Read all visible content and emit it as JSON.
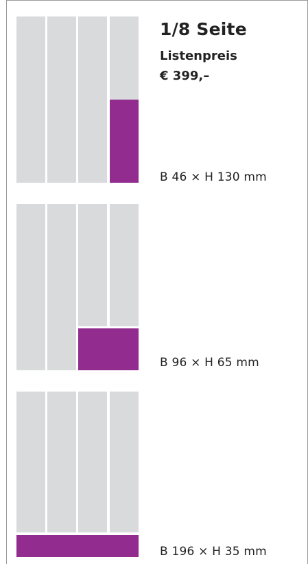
{
  "header": {
    "title": "1/8 Seite",
    "price_label": "Listenpreis",
    "price_value": "€ 399,–"
  },
  "variants": [
    {
      "dimension": "B 46 × H 130 mm"
    },
    {
      "dimension": "B 96 × H 65 mm"
    },
    {
      "dimension": "B 196 × H 35 mm"
    }
  ],
  "colors": {
    "ad_fill": "#922c8e",
    "column_fill": "#d9dadc",
    "frame_line": "#9a9a9a"
  }
}
